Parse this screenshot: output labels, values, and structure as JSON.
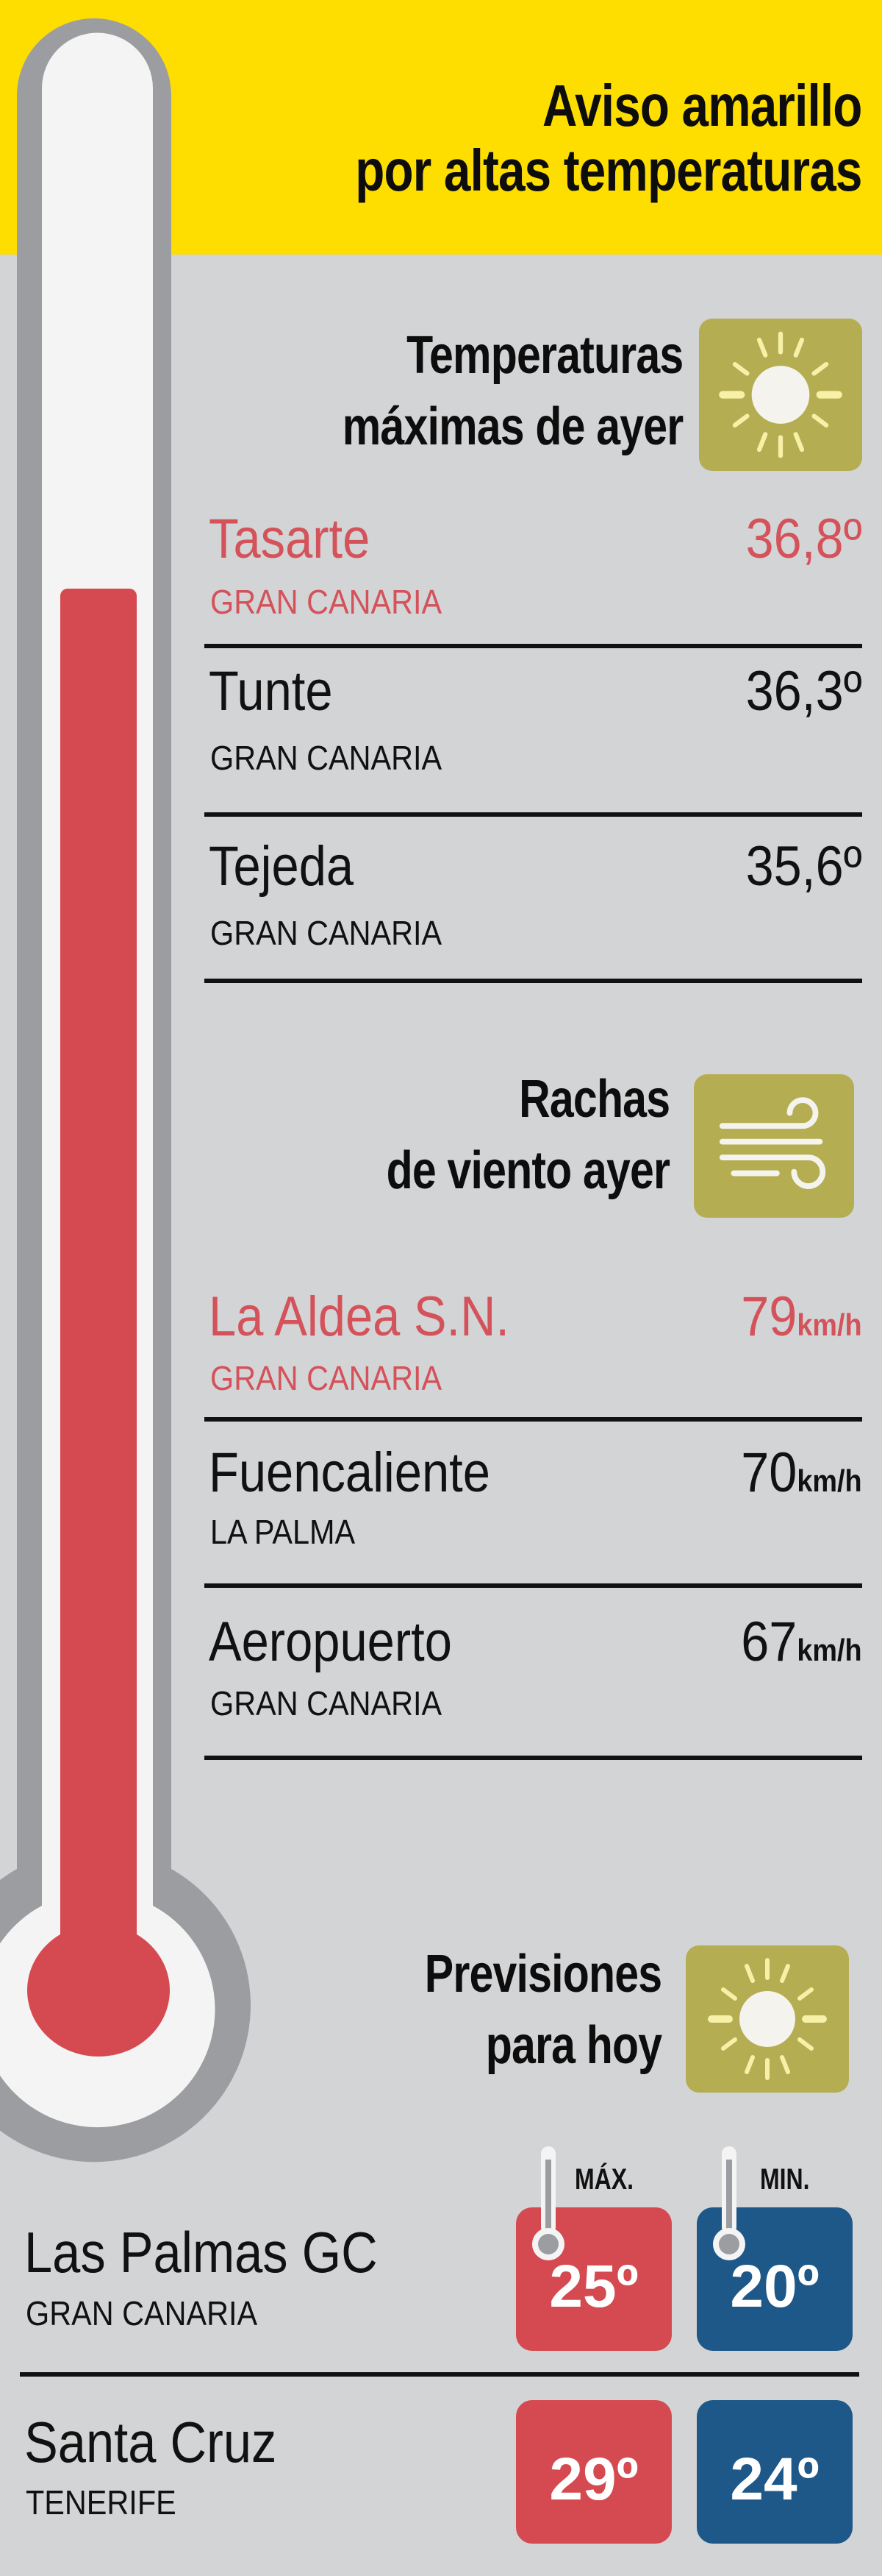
{
  "header": {
    "title_line1": "Aviso amarillo",
    "title_line2": "por altas temperaturas",
    "background_color": "#fedd00"
  },
  "colors": {
    "highlight": "#d4525a",
    "max_box": "#d54a50",
    "min_box": "#1d5888",
    "icon_box": "#b5ad52",
    "thermometer_fill": "#d54a50"
  },
  "max_temps": {
    "heading_line1": "Temperaturas",
    "heading_line2": "máximas de ayer",
    "icon": "sun-icon",
    "rows": [
      {
        "place": "Tasarte",
        "island": "GRAN CANARIA",
        "value": "36,8º",
        "highlight": true
      },
      {
        "place": "Tunte",
        "island": "GRAN CANARIA",
        "value": "36,3º",
        "highlight": false
      },
      {
        "place": "Tejeda",
        "island": "GRAN CANARIA",
        "value": "35,6º",
        "highlight": false
      }
    ]
  },
  "wind": {
    "heading_line1": "Rachas",
    "heading_line2": "de viento ayer",
    "icon": "wind-icon",
    "unit": "km/h",
    "rows": [
      {
        "place": "La Aldea S.N.",
        "island": "GRAN CANARIA",
        "value": "79",
        "highlight": true
      },
      {
        "place": "Fuencaliente",
        "island": "LA PALMA",
        "value": "70",
        "highlight": false
      },
      {
        "place": "Aeropuerto",
        "island": "GRAN CANARIA",
        "value": "67",
        "highlight": false
      }
    ]
  },
  "forecast": {
    "heading_line1": "Previsiones",
    "heading_line2": "para hoy",
    "icon": "sun-icon",
    "max_label": "MÁX.",
    "min_label": "MIN.",
    "rows": [
      {
        "place": "Las Palmas GC",
        "island": "GRAN CANARIA",
        "max": "25º",
        "min": "20º"
      },
      {
        "place": "Santa Cruz",
        "island": "TENERIFE",
        "max": "29º",
        "min": "24º"
      }
    ]
  }
}
